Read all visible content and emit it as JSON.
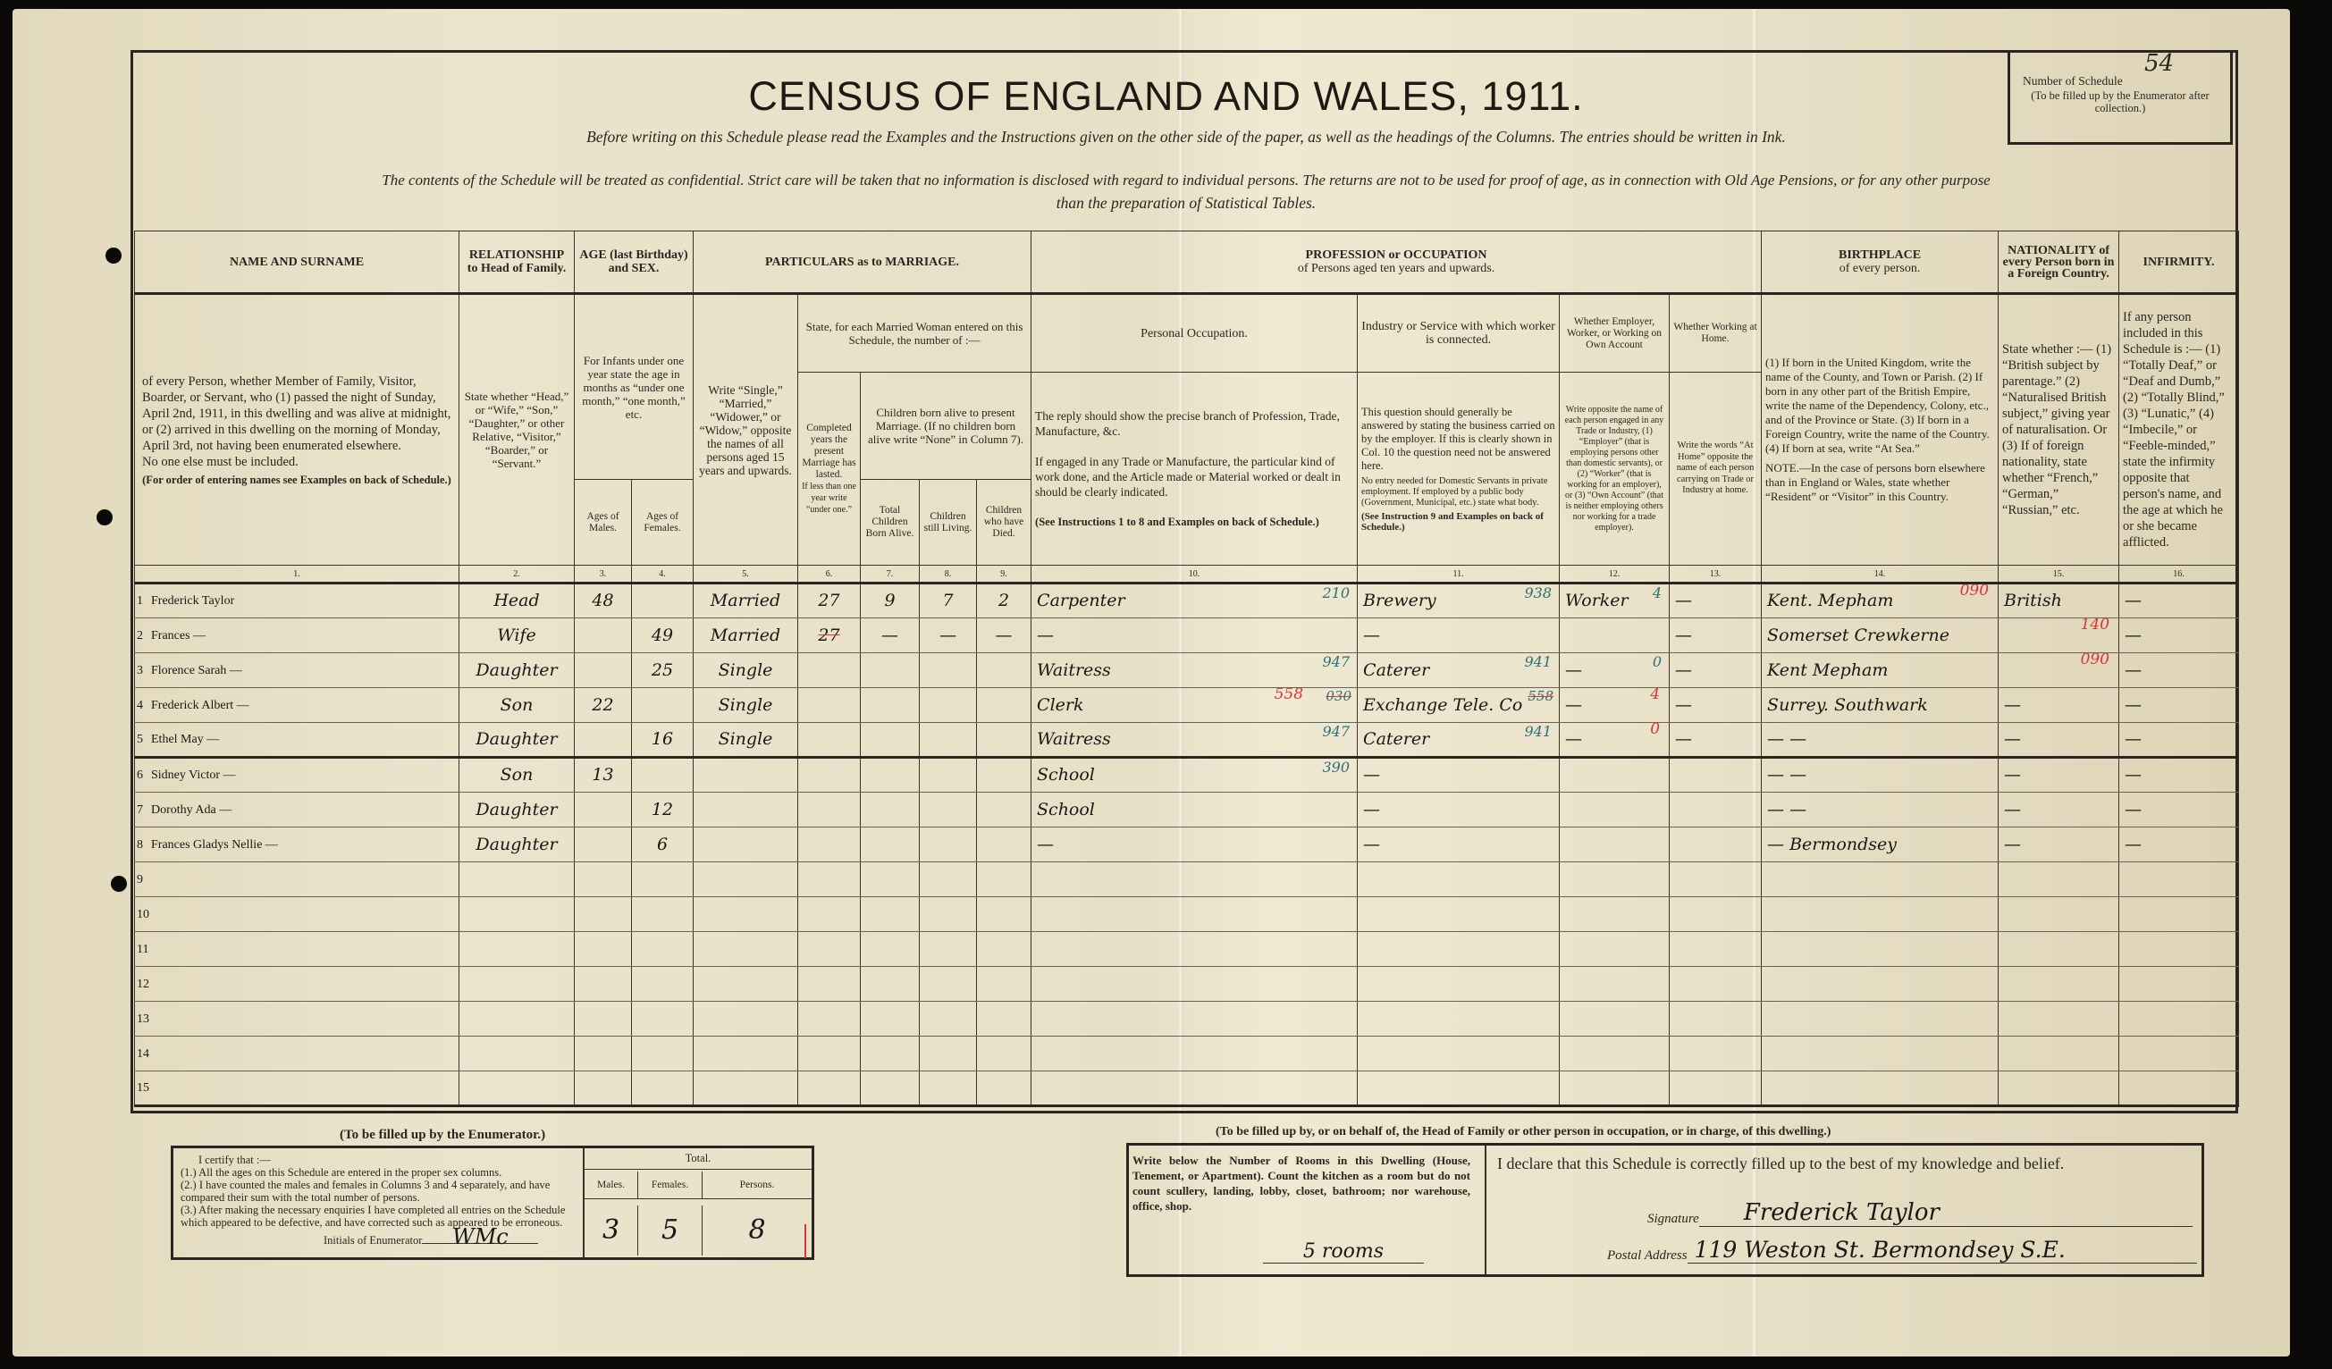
{
  "document": {
    "title": "CENSUS OF ENGLAND AND WALES, 1911.",
    "instruction_1": "Before writing on this Schedule please read the Examples and the Instructions given on the other side of the paper, as well as the headings of the Columns.  The entries should be written in Ink.",
    "instruction_2": "The contents of the Schedule will be treated as confidential.  Strict care will be taken that no information is disclosed with regard to individual persons.  The returns are not to be used for proof of age, as in connection with Old Age Pensions, or for any other purpose",
    "instruction_3": "than the preparation of Statistical Tables.",
    "schedule_label": "Number of Schedule",
    "schedule_number": "54",
    "schedule_note": "(To be filled up by the Enumerator after collection.)"
  },
  "headers": {
    "name": "NAME AND SURNAME",
    "relationship": "RELATIONSHIP to Head of Family.",
    "age": "AGE (last Birthday) and SEX.",
    "marriage": "PARTICULARS as to MARRIAGE.",
    "profession": "PROFESSION or OCCUPATION",
    "profession_sub": "of Persons aged ten years and upwards.",
    "birthplace": "BIRTHPLACE",
    "birthplace_sub": "of every person.",
    "nationality": "NATIONALITY of every Person born in a Foreign Country.",
    "infirmity": "INFIRMITY.",
    "name_desc": "of every Person, whether Member of Family, Visitor, Boarder, or Servant, who (1) passed the night of Sunday, April 2nd, 1911, in this dwelling and was alive at midnight, or (2) arrived in this dwelling on the morning of Monday, April 3rd, not having been enumerated elsewhere.",
    "name_desc_2": "No one else must be included.",
    "name_desc_3": "(For order of entering names see Examples on back of Schedule.)",
    "relationship_desc": "State whether “Head,” or “Wife,” “Son,” “Daughter,” or other Relative, “Visitor,” “Boarder,” or “Servant.”",
    "infants": "For Infants under one year state the age in months as “under one month,” “one month,” etc.",
    "ages_males": "Ages of Males.",
    "ages_females": "Ages of Females.",
    "marital_desc": "Write “Single,” “Married,” “Widower,” or “Widow,” opposite the names of all persons aged 15 years and upwards.",
    "married_woman": "State, for each Married Woman entered on this Schedule, the number of :—",
    "completed_years": "Completed years the present Marriage has lasted.",
    "completed_years_note": "If less than one year write “under one.”",
    "children_alive": "Children born alive to present Marriage. (If no children born alive write “None” in Column 7).",
    "total_children": "Total Children Born Alive.",
    "children_living": "Children still Living.",
    "children_died": "Children who have Died.",
    "personal_occupation": "Personal Occupation.",
    "occupation_desc": "The reply should show the precise branch of Profession, Trade, Manufacture, &c.",
    "occupation_desc_2": "If engaged in any Trade or Manufacture, the particular kind of work done, and the Article made or Material worked or dealt in should be clearly indicated.",
    "occupation_desc_3": "(See Instructions 1 to 8 and Examples on back of Schedule.)",
    "industry": "Industry or Service with which worker is connected.",
    "industry_desc": "This question should generally be answered by stating the business carried on by the employer. If this is clearly shown in Col. 10 the question need not be answered here.",
    "industry_desc_2": "No entry needed for Domestic Servants in private employment. If employed by a public body (Government, Municipal, etc.) state what body.",
    "industry_desc_3": "(See Instruction 9 and Examples on back of Schedule.)",
    "employer": "Whether Employer, Worker, or Working on Own Account",
    "employer_desc": "Write opposite the name of each person engaged in any Trade or Industry, (1) “Employer” (that is employing persons other than domestic servants), or (2) “Worker” (that is working for an employer), or (3) “Own Account” (that is neither employing others nor working for a trade employer).",
    "at_home": "Whether Working at Home.",
    "at_home_desc": "Write the words “At Home” opposite the name of each person carrying on Trade or Industry at home.",
    "birthplace_desc": "(1) If born in the United Kingdom, write the name of the County, and Town or Parish. (2) If born in any other part of the British Empire, write the name of the Dependency, Colony, etc., and of the Province or State. (3) If born in a Foreign Country, write the name of the Country. (4) If born at sea, write “At Sea.”",
    "birthplace_note": "NOTE.—In the case of persons born elsewhere than in England or Wales, state whether “Resident” or “Visitor” in this Country.",
    "nationality_desc": "State whether :— (1) “British subject by parentage.” (2) “Naturalised British subject,” giving year of naturalisation. Or (3) If of foreign nationality, state whether “French,” “German,” “Russian,” etc.",
    "infirmity_desc": "If any person included in this Schedule is :— (1) “Totally Deaf,” or “Deaf and Dumb,” (2) “Totally Blind,” (3) “Lunatic,” (4) “Imbecile,” or “Feeble-minded,” state the infirmity opposite that person's name, and the age at which he or she became afflicted.",
    "column_numbers": [
      "1.",
      "2.",
      "3.",
      "4.",
      "5.",
      "6.",
      "7.",
      "8.",
      "9.",
      "10.",
      "11.",
      "12.",
      "13.",
      "14.",
      "15.",
      "16."
    ]
  },
  "rows": [
    {
      "num": "1",
      "name": "Frederick Taylor",
      "relationship": "Head",
      "age_male": "48",
      "age_female": "",
      "marital": "Married",
      "years_married": "27",
      "children_born": "9",
      "children_living": "7",
      "children_died": "2",
      "occupation": "Carpenter",
      "occupation_code": "210",
      "industry": "Brewery",
      "industry_code": "938",
      "employment": "Worker",
      "employment_code": "4",
      "at_home": "—",
      "birthplace": "Kent. Mepham",
      "birthplace_red": "090",
      "nationality": "British",
      "infirmity": "—"
    },
    {
      "num": "2",
      "name": "Frances —",
      "relationship": "Wife",
      "age_male": "",
      "age_female": "49",
      "marital": "Married",
      "years_married_struck": "27",
      "children_born": "—",
      "children_living": "—",
      "children_died": "—",
      "occupation": "—",
      "industry": "—",
      "at_home": "—",
      "birthplace": "Somerset Crewkerne",
      "nationality_red": "140",
      "infirmity": "—"
    },
    {
      "num": "3",
      "name": "Florence Sarah —",
      "relationship": "Daughter",
      "age_male": "",
      "age_female": "25",
      "marital": "Single",
      "occupation": "Waitress",
      "occupation_code": "947",
      "industry": "Caterer",
      "industry_code": "941",
      "employment": "—",
      "employment_code": "0",
      "at_home": "—",
      "birthplace": "Kent Mepham",
      "nationality_red": "090",
      "infirmity": "—"
    },
    {
      "num": "4",
      "name": "Frederick Albert —",
      "relationship": "Son",
      "age_male": "22",
      "age_female": "",
      "marital": "Single",
      "occupation": "Clerk",
      "occupation_red": "558",
      "occupation_struck": "030",
      "industry": "Exchange Tele. Co",
      "industry_struck": "558",
      "employment": "—",
      "employment_red": "4",
      "at_home": "—",
      "birthplace": "Surrey. Southwark",
      "nationality": "—",
      "infirmity": "—"
    },
    {
      "num": "5",
      "name": "Ethel May —",
      "relationship": "Daughter",
      "age_male": "",
      "age_female": "16",
      "marital": "Single",
      "occupation": "Waitress",
      "occupation_code": "947",
      "industry": "Caterer",
      "industry_code": "941",
      "employment": "—",
      "employment_red": "0",
      "at_home": "—",
      "birthplace": "—   —",
      "nationality": "—",
      "infirmity": "—"
    },
    {
      "num": "6",
      "name": "Sidney Victor —",
      "relationship": "Son",
      "age_male": "13",
      "age_female": "",
      "occupation": "School",
      "occupation_code": "390",
      "industry": "—",
      "birthplace": "—   —",
      "nationality": "—",
      "infirmity": "—"
    },
    {
      "num": "7",
      "name": "Dorothy Ada —",
      "relationship": "Daughter",
      "age_male": "",
      "age_female": "12",
      "occupation": "School",
      "industry": "—",
      "birthplace": "—   —",
      "nationality": "—",
      "infirmity": "—"
    },
    {
      "num": "8",
      "name": "Frances Gladys Nellie —",
      "relationship": "Daughter",
      "age_male": "",
      "age_female": "6",
      "occupation": "—",
      "industry": "—",
      "birthplace": "—  Bermondsey",
      "nationality": "—",
      "infirmity": "—"
    },
    {
      "num": "9"
    },
    {
      "num": "10"
    },
    {
      "num": "11"
    },
    {
      "num": "12"
    },
    {
      "num": "13"
    },
    {
      "num": "14"
    },
    {
      "num": "15"
    }
  ],
  "enumerator": {
    "caption": "(To be filled up by the Enumerator.)",
    "certify": "I certify that :—",
    "item_1": "(1.) All the ages on this Schedule are entered in the proper sex columns.",
    "item_2": "(2.) I have counted the males and females in Columns 3 and 4 separately, and have compared their sum with the total number of persons.",
    "item_3": "(3.) After making the necessary enquiries I have completed all entries on the Schedule which appeared to be defective, and have corrected such as appeared to be erroneous.",
    "initials_label": "Initials of Enumerator",
    "initials": "WMc",
    "total_label": "Total.",
    "males_label": "Males.",
    "females_label": "Females.",
    "persons_label": "Persons.",
    "males": "3",
    "females": "5",
    "persons": "8"
  },
  "household": {
    "caption": "(To be filled up by, or on behalf of, the Head of Family or other person in occupation, or in charge, of this dwelling.)",
    "rooms_instructions": "Write below the Number of Rooms in this Dwelling (House, Tenement, or Apartment). Count the kitchen as a room but do not count scullery, landing, lobby, closet, bathroom; nor warehouse, office, shop.",
    "rooms": "5 rooms",
    "declaration": "I declare that this Schedule is correctly filled up to the best of my knowledge and belief.",
    "signature_label": "Signature",
    "signature": "Frederick Taylor",
    "address_label": "Postal Address",
    "address": "119 Weston St. Bermondsey S.E."
  },
  "colors": {
    "paper": "#e7dfc6",
    "ink": "#1a1714",
    "enumerator_red": "#d8343a",
    "coder_teal": "#2d6f78"
  }
}
